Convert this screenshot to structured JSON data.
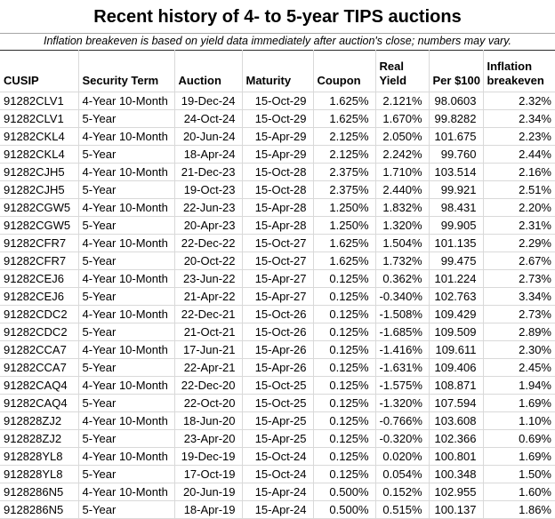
{
  "header": {
    "title": "Recent history of 4- to 5-year TIPS auctions",
    "note": "Inflation breakeven is based on yield data immediately after auction's close; numbers may vary."
  },
  "colors": {
    "text": "#000000",
    "gridline": "#d9d9d9",
    "title_divider": "#a6a6a6",
    "note_divider": "#2b2b2b",
    "background": "#ffffff"
  },
  "chart_data": {
    "type": "table",
    "title": "Recent history of 4- to 5-year TIPS auctions",
    "subtitle": "Inflation breakeven is based on yield data immediately after auction's close; numbers may vary.",
    "columns": [
      {
        "key": "cusip",
        "label": "CUSIP",
        "align": "left"
      },
      {
        "key": "security-term",
        "label": "Security Term",
        "align": "left"
      },
      {
        "key": "auction",
        "label": "Auction",
        "align": "right"
      },
      {
        "key": "maturity",
        "label": "Maturity",
        "align": "right"
      },
      {
        "key": "coupon",
        "label": "Coupon",
        "align": "right"
      },
      {
        "key": "real-yield",
        "label": "Real\nYield",
        "align": "right"
      },
      {
        "key": "per-100",
        "label": "Per $100",
        "align": "right"
      },
      {
        "key": "inflation-breakeven",
        "label": "Inflation\nbreakeven",
        "align": "right"
      }
    ],
    "rows": [
      [
        "91282CLV1",
        "4-Year 10-Month",
        "19-Dec-24",
        "15-Oct-29",
        "1.625%",
        "2.121%",
        "98.0603",
        "2.32%"
      ],
      [
        "91282CLV1",
        "5-Year",
        "24-Oct-24",
        "15-Oct-29",
        "1.625%",
        "1.670%",
        "99.8282",
        "2.34%"
      ],
      [
        "91282CKL4",
        "4-Year 10-Month",
        "20-Jun-24",
        "15-Apr-29",
        "2.125%",
        "2.050%",
        "101.675",
        "2.23%"
      ],
      [
        "91282CKL4",
        "5-Year",
        "18-Apr-24",
        "15-Apr-29",
        "2.125%",
        "2.242%",
        "99.760",
        "2.44%"
      ],
      [
        "91282CJH5",
        "4-Year 10-Month",
        "21-Dec-23",
        "15-Oct-28",
        "2.375%",
        "1.710%",
        "103.514",
        "2.16%"
      ],
      [
        "91282CJH5",
        "5-Year",
        "19-Oct-23",
        "15-Oct-28",
        "2.375%",
        "2.440%",
        "99.921",
        "2.51%"
      ],
      [
        "91282CGW5",
        "4-Year 10-Month",
        "22-Jun-23",
        "15-Apr-28",
        "1.250%",
        "1.832%",
        "98.431",
        "2.20%"
      ],
      [
        "91282CGW5",
        "5-Year",
        "20-Apr-23",
        "15-Apr-28",
        "1.250%",
        "1.320%",
        "99.905",
        "2.31%"
      ],
      [
        "91282CFR7",
        "4-Year 10-Month",
        "22-Dec-22",
        "15-Oct-27",
        "1.625%",
        "1.504%",
        "101.135",
        "2.29%"
      ],
      [
        "91282CFR7",
        "5-Year",
        "20-Oct-22",
        "15-Oct-27",
        "1.625%",
        "1.732%",
        "99.475",
        "2.67%"
      ],
      [
        "91282CEJ6",
        "4-Year 10-Month",
        "23-Jun-22",
        "15-Apr-27",
        "0.125%",
        "0.362%",
        "101.224",
        "2.73%"
      ],
      [
        "91282CEJ6",
        "5-Year",
        "21-Apr-22",
        "15-Apr-27",
        "0.125%",
        "-0.340%",
        "102.763",
        "3.34%"
      ],
      [
        "91282CDC2",
        "4-Year 10-Month",
        "22-Dec-21",
        "15-Oct-26",
        "0.125%",
        "-1.508%",
        "109.429",
        "2.73%"
      ],
      [
        "91282CDC2",
        "5-Year",
        "21-Oct-21",
        "15-Oct-26",
        "0.125%",
        "-1.685%",
        "109.509",
        "2.89%"
      ],
      [
        "91282CCA7",
        "4-Year 10-Month",
        "17-Jun-21",
        "15-Apr-26",
        "0.125%",
        "-1.416%",
        "109.611",
        "2.30%"
      ],
      [
        "91282CCA7",
        "5-Year",
        "22-Apr-21",
        "15-Apr-26",
        "0.125%",
        "-1.631%",
        "109.406",
        "2.45%"
      ],
      [
        "91282CAQ4",
        "4-Year 10-Month",
        "22-Dec-20",
        "15-Oct-25",
        "0.125%",
        "-1.575%",
        "108.871",
        "1.94%"
      ],
      [
        "91282CAQ4",
        "5-Year",
        "22-Oct-20",
        "15-Oct-25",
        "0.125%",
        "-1.320%",
        "107.594",
        "1.69%"
      ],
      [
        "912828ZJ2",
        "4-Year 10-Month",
        "18-Jun-20",
        "15-Apr-25",
        "0.125%",
        "-0.766%",
        "103.608",
        "1.10%"
      ],
      [
        "912828ZJ2",
        "5-Year",
        "23-Apr-20",
        "15-Apr-25",
        "0.125%",
        "-0.320%",
        "102.366",
        "0.69%"
      ],
      [
        "912828YL8",
        "4-Year 10-Month",
        "19-Dec-19",
        "15-Oct-24",
        "0.125%",
        "0.020%",
        "100.801",
        "1.69%"
      ],
      [
        "912828YL8",
        "5-Year",
        "17-Oct-19",
        "15-Oct-24",
        "0.125%",
        "0.054%",
        "100.348",
        "1.50%"
      ],
      [
        "9128286N5",
        "4-Year 10-Month",
        "20-Jun-19",
        "15-Apr-24",
        "0.500%",
        "0.152%",
        "102.955",
        "1.60%"
      ],
      [
        "9128286N5",
        "5-Year",
        "18-Apr-19",
        "15-Apr-24",
        "0.500%",
        "0.515%",
        "100.137",
        "1.86%"
      ]
    ]
  }
}
